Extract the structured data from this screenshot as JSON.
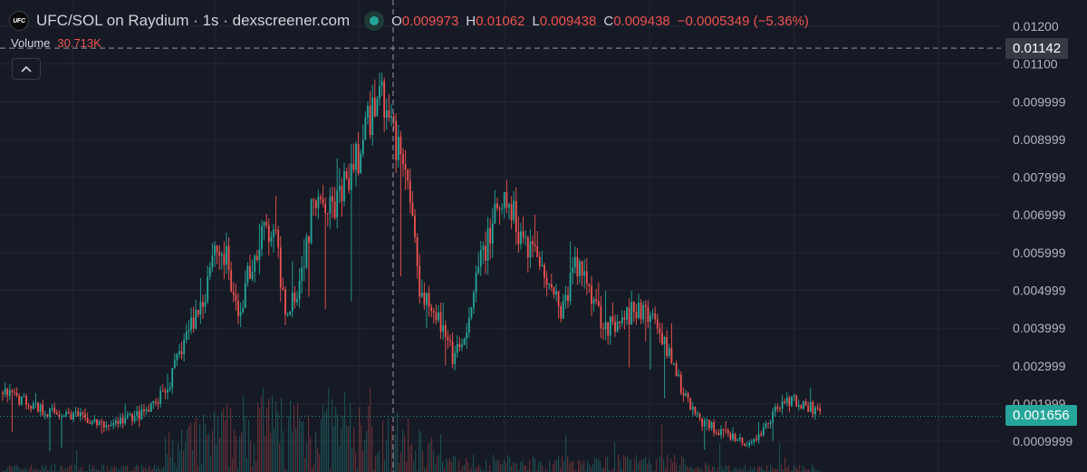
{
  "header": {
    "logo_text": "UFC",
    "title": "UFC/SOL on Raydium · 1s · dexscreener.com",
    "ohlc": [
      {
        "label": "O",
        "value": "0.009973"
      },
      {
        "label": "H",
        "value": "0.01062"
      },
      {
        "label": "L",
        "value": "0.009438"
      },
      {
        "label": "C",
        "value": "0.009438"
      },
      {
        "label": "",
        "value": "−0.0005349 (−5.36%)"
      }
    ]
  },
  "volume": {
    "label": "Volume",
    "value": "30.713K"
  },
  "crosshair_price": "0.01142",
  "last_price": "0.001656",
  "colors": {
    "up": "#26a69a",
    "down": "#ef5350",
    "background": "#161a25",
    "grid": "#232734"
  },
  "icons": {
    "collapse": "chevron-up-icon",
    "status": "status-dot-icon"
  },
  "chart_data": {
    "type": "candlestick",
    "y_tick_labels": [
      "0.01200",
      "0.01100",
      "0.009999",
      "0.008999",
      "0.007999",
      "0.006999",
      "0.005999",
      "0.004999",
      "0.003999",
      "0.002999",
      "0.001999",
      "0.0009999"
    ],
    "y_tick_values": [
      0.012,
      0.011,
      0.009999,
      0.008999,
      0.007999,
      0.006999,
      0.005999,
      0.004999,
      0.003999,
      0.002999,
      0.001999,
      0.0009999
    ],
    "ylim": [
      0.0006,
      0.0124
    ],
    "grid": true,
    "crosshair_value": 0.01142,
    "last_value": 0.001656,
    "price_path": [
      [
        0,
        0.0023
      ],
      [
        25,
        0.0021
      ],
      [
        50,
        0.0018
      ],
      [
        80,
        0.0017
      ],
      [
        115,
        0.0014
      ],
      [
        140,
        0.0016
      ],
      [
        165,
        0.0018
      ],
      [
        185,
        0.0024
      ],
      [
        205,
        0.0038
      ],
      [
        225,
        0.0048
      ],
      [
        235,
        0.0062
      ],
      [
        250,
        0.0058
      ],
      [
        262,
        0.0042
      ],
      [
        275,
        0.0055
      ],
      [
        292,
        0.0066
      ],
      [
        305,
        0.0062
      ],
      [
        315,
        0.0045
      ],
      [
        330,
        0.0052
      ],
      [
        350,
        0.0078
      ],
      [
        370,
        0.0072
      ],
      [
        390,
        0.0082
      ],
      [
        405,
        0.0092
      ],
      [
        418,
        0.0105
      ],
      [
        428,
        0.0096
      ],
      [
        440,
        0.0088
      ],
      [
        452,
        0.0078
      ],
      [
        462,
        0.0052
      ],
      [
        480,
        0.0045
      ],
      [
        500,
        0.0032
      ],
      [
        515,
        0.0037
      ],
      [
        530,
        0.0058
      ],
      [
        545,
        0.0068
      ],
      [
        560,
        0.0073
      ],
      [
        575,
        0.0065
      ],
      [
        590,
        0.0061
      ],
      [
        605,
        0.0054
      ],
      [
        620,
        0.0044
      ],
      [
        635,
        0.0057
      ],
      [
        650,
        0.0052
      ],
      [
        665,
        0.0042
      ],
      [
        680,
        0.0039
      ],
      [
        700,
        0.0045
      ],
      [
        720,
        0.0043
      ],
      [
        740,
        0.0033
      ],
      [
        755,
        0.0022
      ],
      [
        775,
        0.0015
      ],
      [
        800,
        0.0012
      ],
      [
        825,
        0.0009
      ],
      [
        840,
        0.0012
      ],
      [
        860,
        0.002
      ],
      [
        875,
        0.0021
      ],
      [
        895,
        0.0019
      ],
      [
        906,
        0.00165
      ]
    ]
  }
}
